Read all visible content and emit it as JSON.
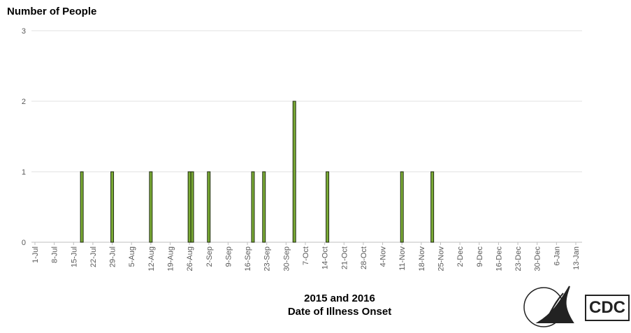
{
  "chart_data": {
    "type": "bar",
    "title": "Number of People",
    "xlabel": [
      "2015 and 2016",
      "Date of Illness Onset"
    ],
    "x": [
      "18-Jul",
      "29-Jul",
      "12-Aug",
      "26-Aug",
      "27-Aug",
      "2-Sep",
      "18-Sep",
      "22-Sep",
      "3-Oct",
      "15-Oct",
      "11-Nov",
      "22-Nov"
    ],
    "values": [
      1,
      1,
      1,
      1,
      1,
      1,
      1,
      1,
      2,
      1,
      1,
      1
    ],
    "color": "#7aab35",
    "xticks": [
      "1-Jul",
      "8-Jul",
      "15-Jul",
      "22-Jul",
      "29-Jul",
      "5-Aug",
      "12-Aug",
      "19-Aug",
      "26-Aug",
      "2-Sep",
      "9-Sep",
      "16-Sep",
      "23-Sep",
      "30-Sep",
      "7-Oct",
      "14-Oct",
      "21-Oct",
      "28-Oct",
      "4-Nov",
      "11-Nov",
      "18-Nov",
      "25-Nov",
      "2-Dec",
      "9-Dec",
      "16-Dec",
      "23-Dec",
      "30-Dec",
      "6-Jan",
      "13-Jan"
    ],
    "ylim": [
      0,
      3
    ],
    "yticks": [
      0,
      1,
      2,
      3
    ],
    "grid": true,
    "logo_text": "CDC"
  }
}
